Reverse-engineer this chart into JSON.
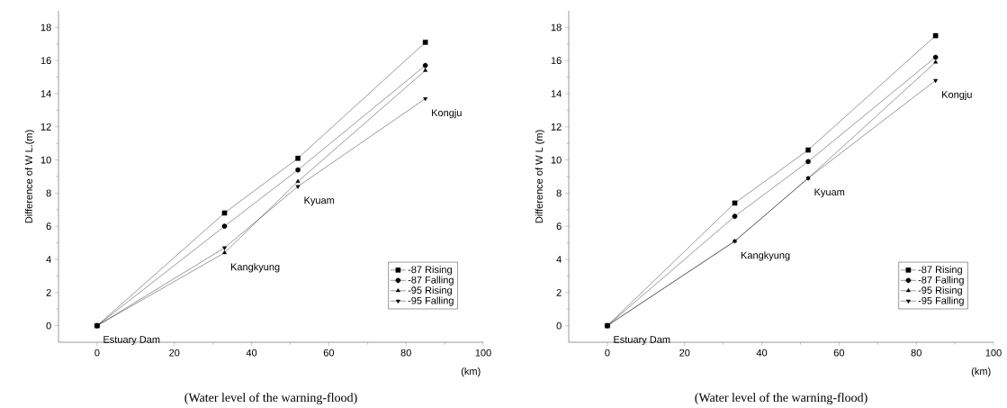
{
  "chart_data": [
    {
      "type": "line",
      "xlabel": "(km)",
      "ylabel": "Difference of W L.(m)",
      "x": [
        0,
        33,
        52,
        85
      ],
      "xlim": [
        -10,
        100
      ],
      "ylim": [
        -1,
        19
      ],
      "xticks": [
        0,
        20,
        40,
        60,
        80,
        100
      ],
      "yticks": [
        0,
        2,
        4,
        6,
        8,
        10,
        12,
        14,
        16,
        18
      ],
      "legend": "bottom right",
      "grid": false,
      "line_style": "solid",
      "series": [
        {
          "name": "-87 Rising",
          "color": "#000000",
          "marker": "square",
          "values": [
            0,
            6.8,
            10.1,
            17.1
          ]
        },
        {
          "name": "-87 Falling",
          "color": "#000000",
          "marker": "circle",
          "values": [
            0,
            6.0,
            9.4,
            15.7
          ]
        },
        {
          "name": "-95 Rising",
          "color": "#000000",
          "marker": "triangle",
          "values": [
            0,
            4.4,
            8.7,
            15.4
          ]
        },
        {
          "name": "-95 Falling",
          "color": "#000000",
          "marker": "triangle down",
          "values": [
            0,
            4.7,
            8.4,
            13.7
          ]
        }
      ],
      "annotations": [
        "Estuary Dam",
        "Kangkyung",
        "Kyuam",
        "Kongju",
        "(Water level of the warning-flood)"
      ]
    },
    {
      "type": "line",
      "xlabel": "(km)",
      "ylabel": "Difference of W L (m)",
      "x": [
        0,
        33,
        52,
        85
      ],
      "xlim": [
        -10,
        100
      ],
      "ylim": [
        -1,
        19
      ],
      "xticks": [
        0,
        20,
        40,
        60,
        80,
        100
      ],
      "yticks": [
        0,
        2,
        4,
        6,
        8,
        10,
        12,
        14,
        16,
        18
      ],
      "legend": "bottom right",
      "grid": false,
      "line_style": "solid",
      "series": [
        {
          "name": "-87 Rising",
          "color": "#000000",
          "marker": "square",
          "values": [
            0,
            7.4,
            10.6,
            17.5
          ]
        },
        {
          "name": "-87 Falling",
          "color": "#000000",
          "marker": "circle",
          "values": [
            0,
            6.6,
            9.9,
            16.2
          ]
        },
        {
          "name": "-95 Rising",
          "color": "#000000",
          "marker": "triangle",
          "values": [
            0,
            5.1,
            8.9,
            15.9
          ]
        },
        {
          "name": "-95 Falling",
          "color": "#000000",
          "marker": "triangle down",
          "values": [
            0,
            5.1,
            8.9,
            14.8
          ]
        }
      ],
      "annotations": [
        "Estuary Dam",
        "Kangkyung",
        "Kyuam",
        "Kongju",
        "(Water level of the warning-flood)"
      ]
    }
  ]
}
